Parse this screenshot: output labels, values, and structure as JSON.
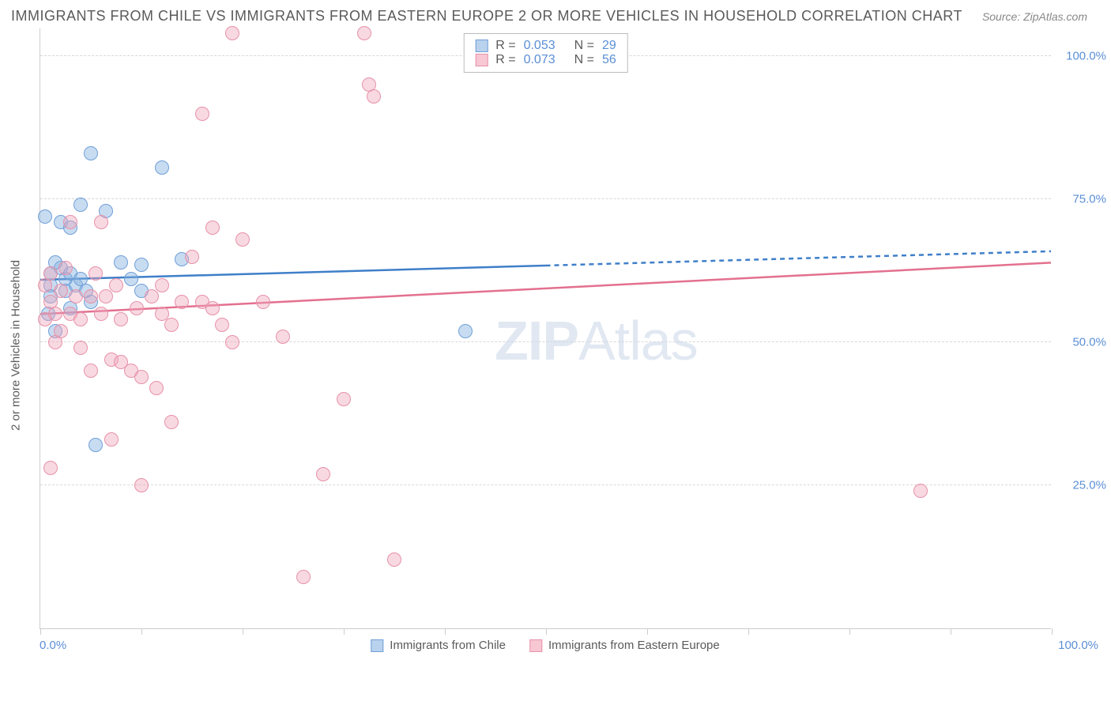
{
  "header": {
    "title": "IMMIGRANTS FROM CHILE VS IMMIGRANTS FROM EASTERN EUROPE 2 OR MORE VEHICLES IN HOUSEHOLD CORRELATION CHART",
    "source": "Source: ZipAtlas.com"
  },
  "chart": {
    "type": "scatter",
    "y_axis_label": "2 or more Vehicles in Household",
    "xlim": [
      0,
      100
    ],
    "ylim": [
      0,
      105
    ],
    "x_tick_start_label": "0.0%",
    "x_tick_end_label": "100.0%",
    "x_tick_positions": [
      0,
      10,
      20,
      30,
      40,
      50,
      60,
      70,
      80,
      90,
      100
    ],
    "y_ticks": [
      {
        "v": 25,
        "label": "25.0%"
      },
      {
        "v": 50,
        "label": "50.0%"
      },
      {
        "v": 75,
        "label": "75.0%"
      },
      {
        "v": 100,
        "label": "100.0%"
      }
    ],
    "grid_color": "#d8d8d8",
    "axis_color": "#cccccc",
    "background_color": "#ffffff",
    "tick_label_color": "#5b8fd6",
    "label_fontsize": 15,
    "title_fontsize": 18,
    "point_radius": 9,
    "point_border_width": 1.2,
    "watermark_text_bold": "ZIP",
    "watermark_text_rest": "Atlas"
  },
  "legend_top": {
    "series": [
      {
        "swatch_fill": "#b9d2ee",
        "swatch_border": "#6f9fd8",
        "r_label": "R =",
        "r_value": "0.053",
        "n_label": "N =",
        "n_value": "29"
      },
      {
        "swatch_fill": "#f7c7d3",
        "swatch_border": "#e791a8",
        "r_label": "R =",
        "r_value": "0.073",
        "n_label": "N =",
        "n_value": "56"
      }
    ]
  },
  "legend_bottom": {
    "items": [
      {
        "swatch_fill": "#b9d2ee",
        "swatch_border": "#6f9fd8",
        "label": "Immigrants from Chile"
      },
      {
        "swatch_fill": "#f7c7d3",
        "swatch_border": "#e791a8",
        "label": "Immigrants from Eastern Europe"
      }
    ]
  },
  "series": [
    {
      "name": "Immigrants from Chile",
      "fill": "rgba(134,178,225,0.45)",
      "border": "#6f9fd8",
      "trend_color": "#3f7fc9",
      "trend_width": 2.5,
      "trend_start": {
        "x": 0,
        "y": 61
      },
      "trend_solid_end": {
        "x": 50,
        "y": 63.5
      },
      "trend_dash_end": {
        "x": 100,
        "y": 66
      },
      "points": [
        {
          "x": 0.5,
          "y": 72
        },
        {
          "x": 1,
          "y": 60
        },
        {
          "x": 1,
          "y": 62
        },
        {
          "x": 1,
          "y": 58
        },
        {
          "x": 1.5,
          "y": 52
        },
        {
          "x": 2,
          "y": 63
        },
        {
          "x": 2,
          "y": 71
        },
        {
          "x": 2.5,
          "y": 61
        },
        {
          "x": 2.5,
          "y": 59
        },
        {
          "x": 3,
          "y": 62
        },
        {
          "x": 3,
          "y": 70
        },
        {
          "x": 3.5,
          "y": 60
        },
        {
          "x": 4,
          "y": 74
        },
        {
          "x": 4,
          "y": 61
        },
        {
          "x": 4.5,
          "y": 59
        },
        {
          "x": 5,
          "y": 83
        },
        {
          "x": 5,
          "y": 57
        },
        {
          "x": 5.5,
          "y": 32
        },
        {
          "x": 6.5,
          "y": 73
        },
        {
          "x": 8,
          "y": 64
        },
        {
          "x": 9,
          "y": 61
        },
        {
          "x": 10,
          "y": 63.5
        },
        {
          "x": 10,
          "y": 59
        },
        {
          "x": 12,
          "y": 80.5
        },
        {
          "x": 14,
          "y": 64.5
        },
        {
          "x": 3,
          "y": 56
        },
        {
          "x": 1.5,
          "y": 64
        },
        {
          "x": 0.8,
          "y": 55
        },
        {
          "x": 42,
          "y": 52
        }
      ]
    },
    {
      "name": "Immigrants from Eastern Europe",
      "fill": "rgba(238,165,185,0.42)",
      "border": "#e791a8",
      "trend_color": "#e3708f",
      "trend_width": 2.5,
      "trend_start": {
        "x": 0,
        "y": 55
      },
      "trend_solid_end": {
        "x": 100,
        "y": 64
      },
      "trend_dash_end": null,
      "points": [
        {
          "x": 0.5,
          "y": 60
        },
        {
          "x": 0.5,
          "y": 54
        },
        {
          "x": 1,
          "y": 62
        },
        {
          "x": 1,
          "y": 57
        },
        {
          "x": 1,
          "y": 28
        },
        {
          "x": 1.5,
          "y": 55
        },
        {
          "x": 1.5,
          "y": 50
        },
        {
          "x": 2,
          "y": 59
        },
        {
          "x": 2,
          "y": 52
        },
        {
          "x": 2.5,
          "y": 63
        },
        {
          "x": 3,
          "y": 55
        },
        {
          "x": 3,
          "y": 71
        },
        {
          "x": 3.5,
          "y": 58
        },
        {
          "x": 4,
          "y": 54
        },
        {
          "x": 4,
          "y": 49
        },
        {
          "x": 24,
          "y": 51
        },
        {
          "x": 5,
          "y": 58
        },
        {
          "x": 5,
          "y": 45
        },
        {
          "x": 5.5,
          "y": 62
        },
        {
          "x": 6,
          "y": 71
        },
        {
          "x": 6,
          "y": 55
        },
        {
          "x": 6.5,
          "y": 58
        },
        {
          "x": 7,
          "y": 47
        },
        {
          "x": 7,
          "y": 33
        },
        {
          "x": 7.5,
          "y": 60
        },
        {
          "x": 8,
          "y": 46.5
        },
        {
          "x": 8,
          "y": 54
        },
        {
          "x": 9,
          "y": 45
        },
        {
          "x": 9.5,
          "y": 56
        },
        {
          "x": 10,
          "y": 44
        },
        {
          "x": 10,
          "y": 25
        },
        {
          "x": 11,
          "y": 58
        },
        {
          "x": 11.5,
          "y": 42
        },
        {
          "x": 12,
          "y": 55
        },
        {
          "x": 12,
          "y": 60
        },
        {
          "x": 13,
          "y": 53
        },
        {
          "x": 13,
          "y": 36
        },
        {
          "x": 14,
          "y": 57
        },
        {
          "x": 15,
          "y": 65
        },
        {
          "x": 16,
          "y": 57
        },
        {
          "x": 16,
          "y": 90
        },
        {
          "x": 17,
          "y": 56
        },
        {
          "x": 17,
          "y": 70
        },
        {
          "x": 18,
          "y": 53
        },
        {
          "x": 19,
          "y": 104
        },
        {
          "x": 19,
          "y": 50
        },
        {
          "x": 20,
          "y": 68
        },
        {
          "x": 22,
          "y": 57
        },
        {
          "x": 26,
          "y": 9
        },
        {
          "x": 28,
          "y": 27
        },
        {
          "x": 30,
          "y": 40
        },
        {
          "x": 32,
          "y": 104
        },
        {
          "x": 32.5,
          "y": 95
        },
        {
          "x": 33,
          "y": 93
        },
        {
          "x": 35,
          "y": 12
        },
        {
          "x": 87,
          "y": 24
        }
      ]
    }
  ]
}
